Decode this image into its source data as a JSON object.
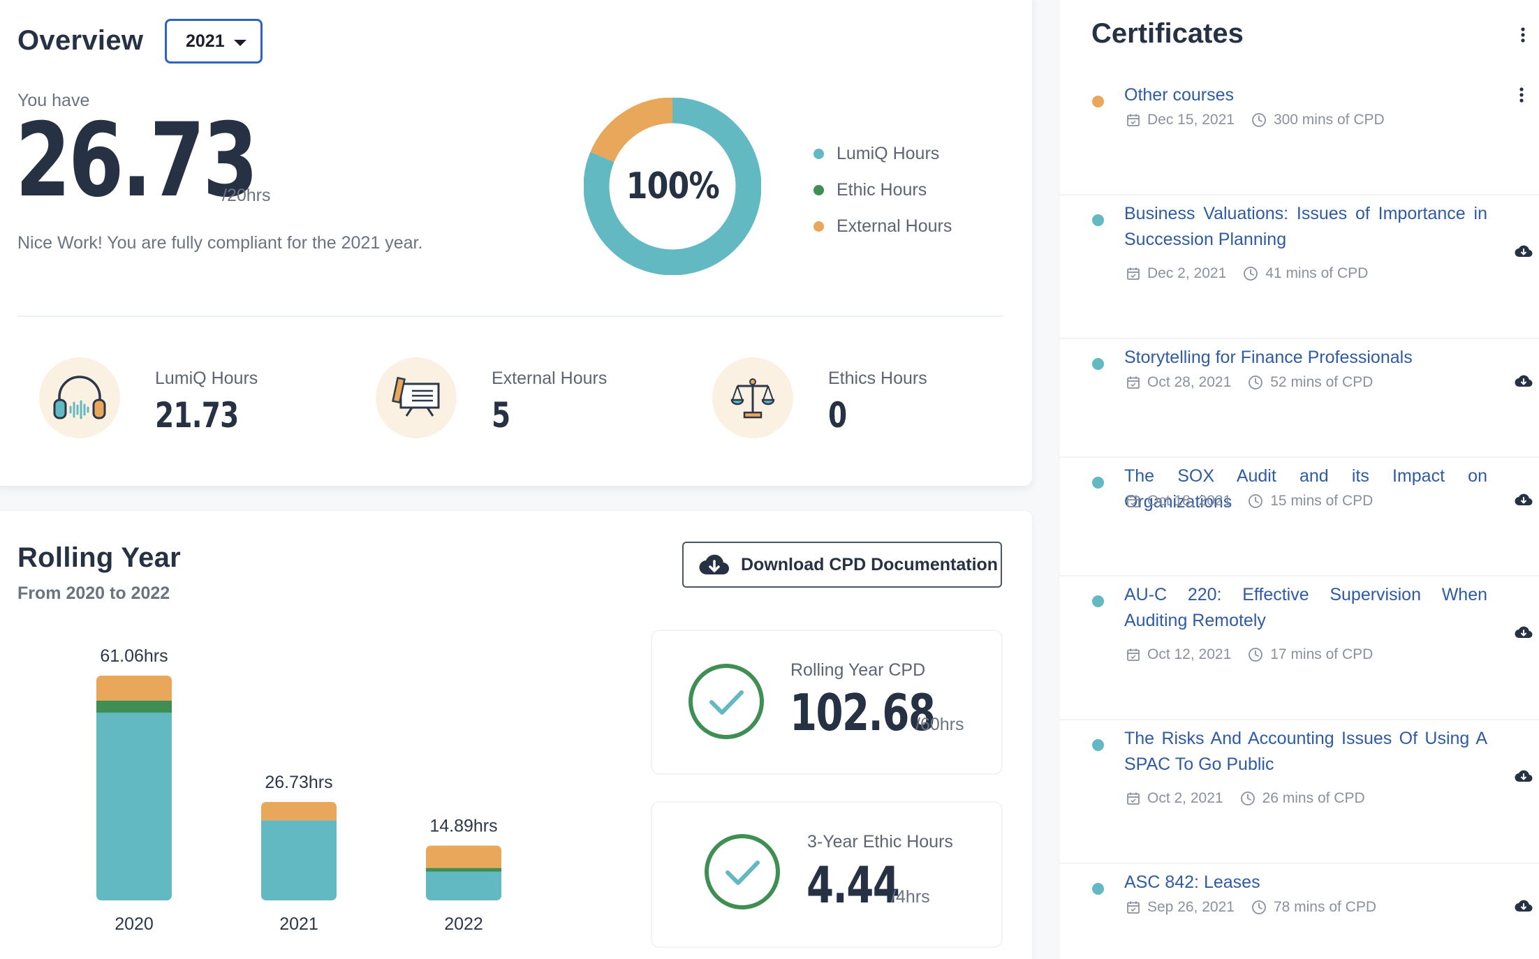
{
  "overview": {
    "title": "Overview",
    "year_selected": "2021",
    "you_have": "You have",
    "total_hours": "26.73",
    "target": "/20hrs",
    "message": "Nice Work! You are fully compliant for the 2021 year.",
    "donut_percent": "100%",
    "donut_segments": [
      {
        "name": "LumiQ Hours",
        "value": 21.73,
        "color": "#62b9c1"
      },
      {
        "name": "Ethic Hours",
        "value": 0,
        "color": "#3f8e54"
      },
      {
        "name": "External Hours",
        "value": 5,
        "color": "#e9a75b"
      }
    ],
    "legend": [
      {
        "label": "LumiQ Hours",
        "color": "#62b9c1"
      },
      {
        "label": "Ethic Hours",
        "color": "#3f8e54"
      },
      {
        "label": "External Hours",
        "color": "#e9a75b"
      }
    ],
    "stats": [
      {
        "label": "LumiQ Hours",
        "value": "21.73",
        "icon": "headphones-icon"
      },
      {
        "label": "External Hours",
        "value": "5",
        "icon": "presentation-board-icon"
      },
      {
        "label": "Ethics Hours",
        "value": "0",
        "icon": "scales-icon"
      }
    ]
  },
  "rolling": {
    "title": "Rolling Year",
    "subtitle": "From 2020 to 2022",
    "download_label": "Download CPD Documentation",
    "rolling_cpd": {
      "label": "Rolling Year CPD",
      "value": "102.68",
      "target": "/60hrs"
    },
    "ethic_hours": {
      "label": "3-Year Ethic Hours",
      "value": "4.44",
      "target": "/4hrs"
    }
  },
  "chart_data": {
    "type": "bar",
    "stacked": true,
    "categories": [
      "2020",
      "2021",
      "2022"
    ],
    "totals_labels": [
      "61.06hrs",
      "26.73hrs",
      "14.89hrs"
    ],
    "totals": [
      61.06,
      26.73,
      14.89
    ],
    "series": [
      {
        "name": "LumiQ Hours",
        "color": "#62b9c1",
        "values": [
          51.0,
          21.73,
          7.8
        ]
      },
      {
        "name": "Ethic Hours",
        "color": "#3f8e54",
        "values": [
          3.3,
          0,
          1.0
        ]
      },
      {
        "name": "External Hours",
        "color": "#e9a75b",
        "values": [
          6.76,
          5.0,
          6.09
        ]
      }
    ],
    "ylim": [
      0,
      61.06
    ]
  },
  "certificates": {
    "title": "Certificates",
    "items": [
      {
        "name": "Other courses",
        "date": "Dec 15, 2021",
        "mins": "300 mins of CPD",
        "color": "#e9a75b",
        "action": "more-vertical-icon"
      },
      {
        "name": "Business Valuations: Issues of Importance in Succession Planning",
        "date": "Dec 2, 2021",
        "mins": "41 mins of CPD",
        "color": "#62b9c1",
        "action": "cloud-download-icon"
      },
      {
        "name": "Storytelling for Finance Professionals",
        "date": "Oct 28, 2021",
        "mins": "52 mins of CPD",
        "color": "#62b9c1",
        "action": "cloud-download-icon"
      },
      {
        "name": "The SOX Audit and its Impact on Organizations",
        "date": "Oct 18, 2021",
        "mins": "15 mins of CPD",
        "color": "#62b9c1",
        "action": "cloud-download-icon"
      },
      {
        "name": "AU-C 220: Effective Supervision When Auditing Remotely",
        "date": "Oct 12, 2021",
        "mins": "17 mins of CPD",
        "color": "#62b9c1",
        "action": "cloud-download-icon"
      },
      {
        "name": "The Risks And Accounting Issues Of Using A SPAC To Go Public",
        "date": "Oct 2, 2021",
        "mins": "26 mins of CPD",
        "color": "#62b9c1",
        "action": "cloud-download-icon"
      },
      {
        "name": "ASC 842: Leases",
        "date": "Sep 26, 2021",
        "mins": "78 mins of CPD",
        "color": "#62b9c1",
        "action": "cloud-download-icon"
      }
    ]
  }
}
